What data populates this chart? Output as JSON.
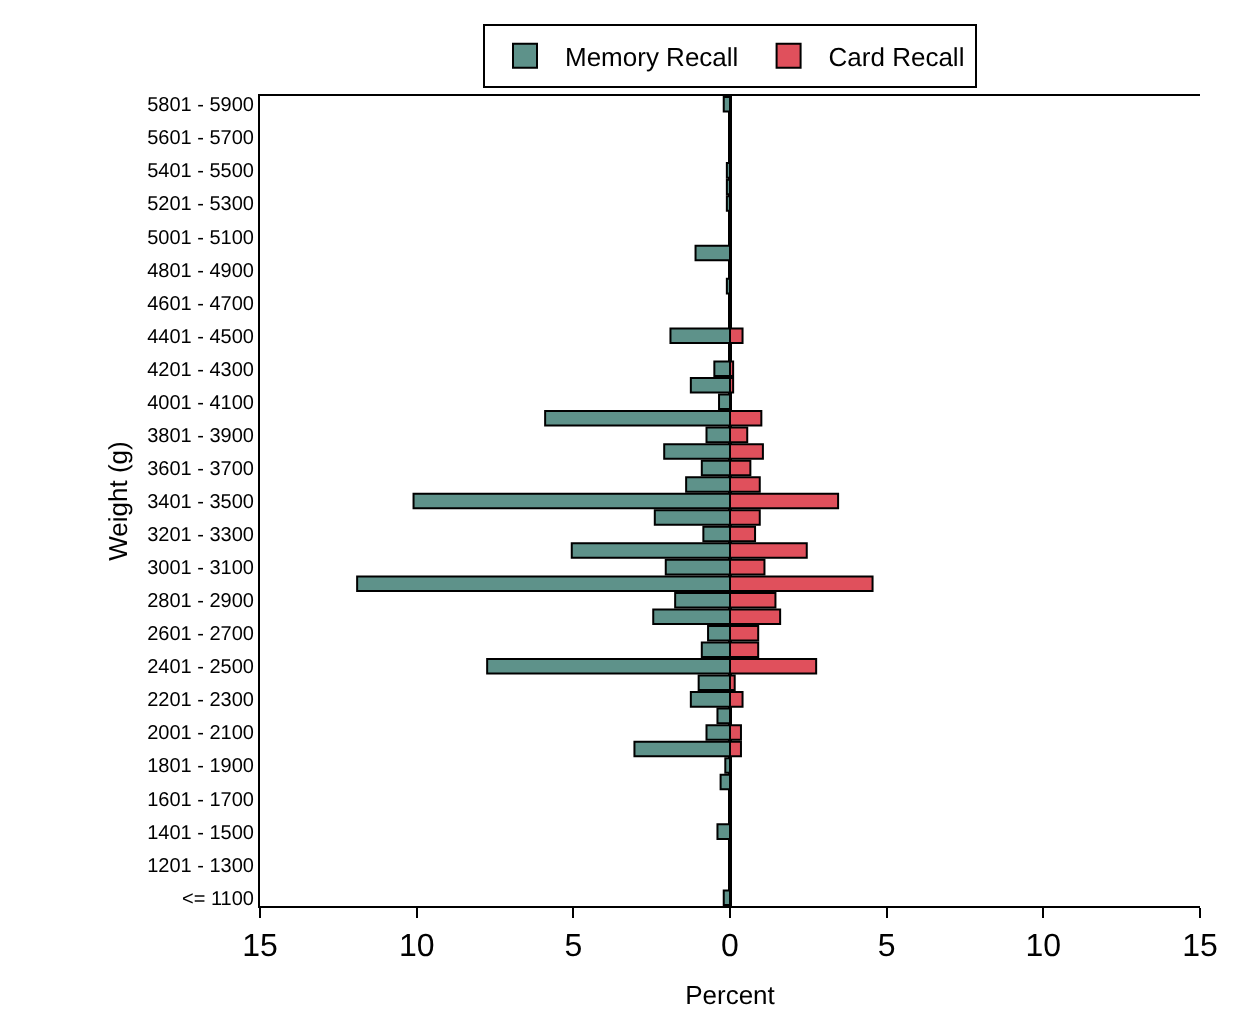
{
  "chart_data": {
    "type": "bar",
    "orientation": "horizontal",
    "stacked": true,
    "ylabel": "Weight (g)",
    "xlabel": "Percent",
    "categories": [
      "5801 - 5900",
      null,
      "5601 - 5700",
      null,
      "5401 - 5500",
      null,
      "5201 - 5300",
      null,
      "5001 - 5100",
      null,
      "4801 - 4900",
      null,
      "4601 - 4700",
      null,
      "4401 - 4500",
      null,
      "4201 - 4300",
      null,
      "4001 - 4100",
      null,
      "3801 - 3900",
      null,
      "3601 - 3700",
      null,
      "3401 - 3500",
      null,
      "3201 - 3300",
      null,
      "3001 - 3100",
      null,
      "2801 - 2900",
      null,
      "2601 - 2700",
      null,
      "2401 - 2500",
      null,
      "2201 - 2300",
      null,
      "2001 - 2100",
      null,
      "1801 - 1900",
      null,
      "1601 - 1700",
      null,
      "1401 - 1500",
      null,
      "1201 - 1300",
      null,
      "<= 1100"
    ],
    "series": [
      {
        "name": "Memory Recall",
        "color": "#5e928a",
        "values": [
          -0.2,
          null,
          null,
          null,
          -0.1,
          -0.1,
          -0.1,
          null,
          null,
          -1.1,
          null,
          -0.1,
          null,
          null,
          -1.9,
          null,
          -0.5,
          -1.25,
          -0.35,
          -5.9,
          -0.75,
          -2.1,
          -0.9,
          -1.4,
          -10.1,
          -2.4,
          -0.85,
          -5.05,
          -2.05,
          -11.9,
          -1.75,
          -2.45,
          -0.7,
          -0.9,
          -7.75,
          -1.0,
          -1.25,
          -0.4,
          -0.75,
          -3.05,
          -0.15,
          -0.3,
          null,
          null,
          -0.4,
          null,
          null,
          null,
          -0.2
        ]
      },
      {
        "name": "Card Recall",
        "color": "#e0505c",
        "values": [
          null,
          null,
          null,
          null,
          null,
          null,
          null,
          null,
          null,
          null,
          null,
          null,
          null,
          null,
          0.4,
          null,
          0.1,
          0.1,
          null,
          1.0,
          0.55,
          1.05,
          0.65,
          0.95,
          3.45,
          0.95,
          0.8,
          2.45,
          1.1,
          4.55,
          1.45,
          1.6,
          0.9,
          0.9,
          2.75,
          0.15,
          0.4,
          null,
          0.35,
          0.35,
          null,
          null,
          null,
          null,
          null,
          null,
          null,
          null,
          null
        ]
      }
    ],
    "xlim": [
      -15,
      15
    ],
    "xticks": [
      {
        "value": -15,
        "label": "15"
      },
      {
        "value": -10,
        "label": "10"
      },
      {
        "value": -5,
        "label": "5"
      },
      0,
      5,
      10,
      15
    ],
    "legend": "top"
  }
}
